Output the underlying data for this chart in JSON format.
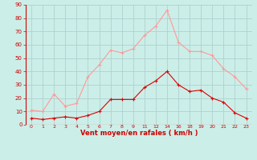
{
  "xlabel": "Vent moyen/en rafales ( km/h )",
  "bg_color": "#cceee8",
  "grid_color": "#aacccc",
  "line1_color": "#dd0000",
  "line2_color": "#ff9999",
  "mean_y": [
    5,
    4,
    5,
    6,
    5,
    7,
    10,
    19,
    19,
    19,
    28,
    33,
    40,
    30,
    25,
    26,
    20,
    17,
    9,
    5
  ],
  "gust_y": [
    11,
    10,
    23,
    14,
    16,
    36,
    45,
    56,
    54,
    57,
    67,
    74,
    86,
    62,
    55,
    55,
    52,
    42,
    36,
    27
  ],
  "x_labels": [
    "0",
    "1",
    "2",
    "3",
    "4",
    "5",
    "6",
    "7",
    "8",
    "9",
    "11",
    "12",
    "14",
    "16",
    "18",
    "19",
    "20",
    "21",
    "22",
    "23"
  ],
  "ylim": [
    0,
    90
  ],
  "yticks": [
    0,
    10,
    20,
    30,
    40,
    50,
    60,
    70,
    80,
    90
  ],
  "figsize": [
    3.2,
    2.0
  ],
  "dpi": 100
}
